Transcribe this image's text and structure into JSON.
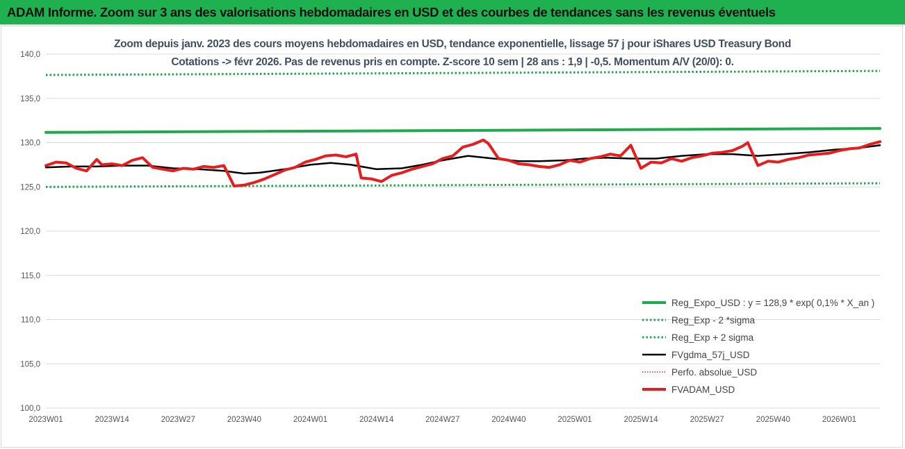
{
  "header": {
    "title": "ADAM Informe. Zoom sur 3 ans des valorisations hebdomadaires en USD et des courbes de tendances sans les revenus éventuels"
  },
  "chart_data": {
    "type": "line",
    "subtitle_line1": "Zoom depuis janv. 2023 des cours moyens hebdomadaires en USD, tendance exponentielle, lissage 57 j pour iShares USD Treasury Bond",
    "subtitle_line2": "Cotations -> févr 2026. Pas de revenus pris en compte. Z-score 10 sem | 28 ans : 1,9 | -0,5. Momentum A/V (20/0): 0.",
    "xlabel": "",
    "ylabel": "",
    "ylim": [
      100,
      140
    ],
    "ytick_values": [
      100,
      105,
      110,
      115,
      120,
      125,
      130,
      135,
      140
    ],
    "ytick_labels": [
      "100,0",
      "105,0",
      "110,0",
      "115,0",
      "120,0",
      "125,0",
      "130,0",
      "135,0",
      "140,0"
    ],
    "xtick_labels": [
      "2023W01",
      "2023W14",
      "2023W27",
      "2023W40",
      "2024W01",
      "2024W14",
      "2024W27",
      "2024W40",
      "2025W01",
      "2025W14",
      "2025W27",
      "2025W40",
      "2026W01"
    ],
    "grid": "horizontal",
    "legend_position": "bottom-right",
    "x_week_index_range": [
      0,
      164
    ],
    "series": [
      {
        "name": "Reg_Expo_USD : y = 128,9 * exp( 0,1% *  X_an )",
        "color": "#1faa4c",
        "style": "solid-thick",
        "x": [
          0,
          164
        ],
        "values": [
          131.15,
          131.6
        ]
      },
      {
        "name": "Reg_Exp - 2 *sigma",
        "color": "#1faa4c",
        "style": "dotted",
        "x": [
          0,
          164
        ],
        "values": [
          125.0,
          125.4
        ]
      },
      {
        "name": "Reg_Exp + 2 sigma",
        "color": "#1faa4c",
        "style": "dotted",
        "x": [
          0,
          164
        ],
        "values": [
          137.65,
          138.1
        ]
      },
      {
        "name": "FVgdma_57j_USD",
        "color": "#000000",
        "style": "solid",
        "x": [
          0,
          5,
          10,
          15,
          20,
          25,
          30,
          35,
          39,
          42,
          47,
          52,
          56,
          60,
          65,
          70,
          74,
          78,
          83,
          88,
          93,
          97,
          102,
          106,
          110,
          115,
          120,
          125,
          130,
          135,
          140,
          145,
          150,
          155,
          160,
          164
        ],
        "values": [
          127.2,
          127.3,
          127.3,
          127.4,
          127.4,
          127.1,
          127.0,
          126.8,
          126.5,
          126.6,
          127.0,
          127.5,
          127.7,
          127.5,
          127.0,
          127.1,
          127.5,
          128.0,
          128.5,
          128.2,
          127.9,
          127.9,
          128.0,
          128.2,
          128.3,
          128.2,
          128.2,
          128.5,
          128.7,
          128.7,
          128.5,
          128.7,
          128.9,
          129.2,
          129.4,
          129.7
        ]
      },
      {
        "name": "Perfo. absolue_USD",
        "color": "#e0201b",
        "style": "dotted",
        "x": [],
        "values": []
      },
      {
        "name": "FVADAM_USD",
        "color": "#e81c1c",
        "style": "solid-thick",
        "x": [
          0,
          2,
          4,
          6,
          8,
          10,
          11,
          13,
          15,
          17,
          19,
          21,
          23,
          25,
          27,
          29,
          31,
          33,
          35,
          37,
          39,
          41,
          43,
          45,
          47,
          49,
          51,
          53,
          55,
          57,
          59,
          61,
          62,
          64,
          66,
          68,
          70,
          72,
          74,
          76,
          78,
          80,
          82,
          84,
          86,
          87,
          89,
          91,
          93,
          95,
          97,
          99,
          101,
          103,
          105,
          107,
          109,
          111,
          113,
          115,
          117,
          119,
          121,
          123,
          125,
          127,
          129,
          131,
          133,
          135,
          137,
          138,
          140,
          142,
          144,
          146,
          148,
          150,
          152,
          154,
          156,
          158,
          160,
          162,
          164
        ],
        "values": [
          127.4,
          127.8,
          127.7,
          127.1,
          126.8,
          128.1,
          127.5,
          127.6,
          127.4,
          128.0,
          128.3,
          127.2,
          127.0,
          126.8,
          127.1,
          127.0,
          127.3,
          127.2,
          127.4,
          125.1,
          125.2,
          125.5,
          125.9,
          126.4,
          126.9,
          127.2,
          127.8,
          128.1,
          128.5,
          128.6,
          128.4,
          128.7,
          126.0,
          125.9,
          125.6,
          126.3,
          126.6,
          127.0,
          127.3,
          127.6,
          128.2,
          128.5,
          129.5,
          129.8,
          130.3,
          129.9,
          128.2,
          128.0,
          127.6,
          127.5,
          127.3,
          127.2,
          127.5,
          128.0,
          127.8,
          128.2,
          128.4,
          128.7,
          128.5,
          129.7,
          127.1,
          127.8,
          127.7,
          128.2,
          127.9,
          128.3,
          128.5,
          128.8,
          128.9,
          129.1,
          129.6,
          130.0,
          127.4,
          127.9,
          127.8,
          128.1,
          128.3,
          128.6,
          128.7,
          128.8,
          129.1,
          129.3,
          129.4,
          129.8,
          130.1
        ]
      }
    ]
  }
}
